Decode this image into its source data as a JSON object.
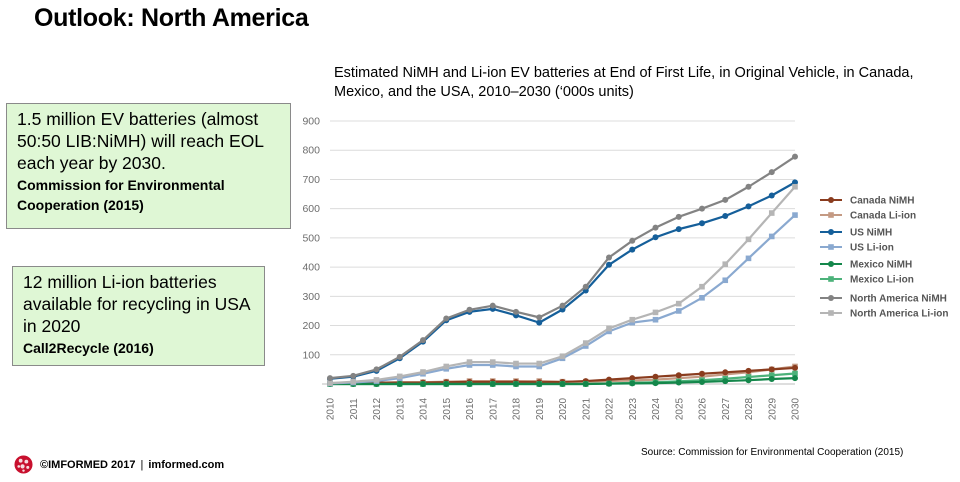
{
  "slide": {
    "title": "Outlook: North America"
  },
  "chart_title": "Estimated NiMH and Li-ion EV batteries at End of First Life, in Original Vehicle, in Canada, Mexico, and the USA, 2010–2030 (‘000s units)",
  "callouts": [
    {
      "text": "1.5 million EV batteries (almost 50:50 LIB:NiMH) will reach EOL each year by 2030.",
      "citation": "Commission for Environmental Cooperation (2015)"
    },
    {
      "text": "12 million Li-ion batteries available for recycling in USA in 2020",
      "citation": "Call2Recycle (2016)"
    }
  ],
  "source_note": "Source: Commission  for Environmental Cooperation (2015)",
  "footer": {
    "copyright": "©IMFORMED 2017",
    "separator": "|",
    "website": "imformed.com",
    "logo_icon": "imformed-globe-logo-icon"
  },
  "chart_data": {
    "type": "line",
    "x": [
      2010,
      2011,
      2012,
      2013,
      2014,
      2015,
      2016,
      2017,
      2018,
      2019,
      2020,
      2021,
      2022,
      2023,
      2024,
      2025,
      2026,
      2027,
      2028,
      2029,
      2030
    ],
    "x_tick_labels": [
      "2010",
      "2011",
      "2012",
      "2013",
      "2014",
      "2015",
      "2016",
      "2017",
      "2018",
      "2019",
      "2020",
      "2021",
      "2022",
      "2023",
      "2024",
      "2025",
      "2026",
      "2027",
      "2028",
      "2029",
      "2030"
    ],
    "ylim": [
      0,
      900
    ],
    "y_ticks": [
      100,
      200,
      300,
      400,
      500,
      600,
      700,
      800,
      900
    ],
    "grid": true,
    "legend_position": "right",
    "series": [
      {
        "name": "Canada NiMH",
        "color": "#8a3c1e",
        "marker": "circle",
        "values": [
          3,
          4,
          5,
          5,
          5,
          6,
          7,
          7,
          7,
          6,
          7,
          10,
          15,
          20,
          25,
          30,
          35,
          40,
          45,
          50,
          55
        ]
      },
      {
        "name": "Canada Li-ion",
        "color": "#c49a83",
        "marker": "square",
        "values": [
          1,
          3,
          4,
          6,
          6,
          8,
          10,
          10,
          10,
          10,
          8,
          8,
          10,
          12,
          15,
          20,
          25,
          33,
          40,
          50,
          60
        ]
      },
      {
        "name": "US NiMH",
        "color": "#155f9a",
        "marker": "circle",
        "values": [
          18,
          25,
          45,
          88,
          145,
          218,
          247,
          257,
          235,
          210,
          255,
          320,
          408,
          460,
          502,
          530,
          550,
          575,
          608,
          645,
          690
        ]
      },
      {
        "name": "US Li-ion",
        "color": "#8aa9d0",
        "marker": "square",
        "values": [
          2,
          5,
          10,
          20,
          35,
          52,
          65,
          65,
          60,
          60,
          88,
          130,
          180,
          210,
          220,
          250,
          295,
          355,
          430,
          505,
          578
        ]
      },
      {
        "name": "Mexico NiMH",
        "color": "#14874b",
        "marker": "circle",
        "values": [
          0,
          0,
          0,
          0,
          0,
          0,
          0,
          0,
          0,
          0,
          0,
          0,
          1,
          2,
          3,
          5,
          7,
          10,
          13,
          17,
          20
        ]
      },
      {
        "name": "Mexico Li-ion",
        "color": "#4cb27a",
        "marker": "square",
        "values": [
          0,
          0,
          0,
          0,
          0,
          0,
          0,
          0,
          0,
          0,
          0,
          0,
          2,
          4,
          6,
          9,
          13,
          18,
          24,
          30,
          36
        ]
      },
      {
        "name": "North America NiMH",
        "color": "#838383",
        "marker": "circle",
        "values": [
          20,
          28,
          50,
          93,
          150,
          224,
          254,
          268,
          247,
          228,
          268,
          333,
          433,
          490,
          535,
          572,
          600,
          630,
          675,
          725,
          778
        ]
      },
      {
        "name": "North America Li-ion",
        "color": "#b5b5b5",
        "marker": "square",
        "values": [
          3,
          8,
          14,
          26,
          41,
          60,
          75,
          75,
          70,
          70,
          95,
          140,
          190,
          220,
          245,
          275,
          333,
          410,
          495,
          585,
          675
        ]
      }
    ]
  }
}
